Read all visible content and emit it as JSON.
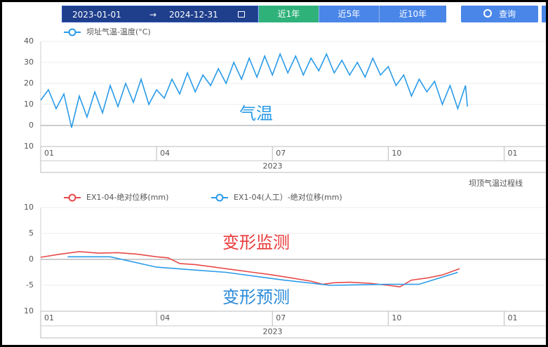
{
  "toolbar": {
    "start_date": "2023-01-01",
    "arrow": "→",
    "end_date": "2024-12-31",
    "ranges": [
      "近1年",
      "近5年",
      "近10年"
    ],
    "query": "查询"
  },
  "chart_data": [
    {
      "type": "line",
      "series": [
        {
          "name": "坝址气温-温度(°C)",
          "color": "#2a9be8",
          "x": [
            0,
            0.2,
            0.4,
            0.6,
            0.8,
            1,
            1.2,
            1.4,
            1.6,
            1.8,
            2,
            2.2,
            2.4,
            2.6,
            2.8,
            3,
            3.2,
            3.4,
            3.6,
            3.8,
            4,
            4.2,
            4.4,
            4.6,
            4.8,
            5,
            5.2,
            5.4,
            5.6,
            5.8,
            6,
            6.2,
            6.4,
            6.6,
            6.8,
            7,
            7.2,
            7.4,
            7.6,
            7.8,
            8,
            8.2,
            8.4,
            8.6,
            8.8,
            9,
            9.2,
            9.4,
            9.6,
            9.8,
            10,
            10.2,
            10.4,
            10.6,
            10.8,
            11,
            11.05
          ],
          "values": [
            12,
            17,
            8,
            15,
            -1,
            14,
            4,
            16,
            6,
            19,
            9,
            20,
            11,
            22,
            10,
            17,
            13,
            22,
            15,
            25,
            16,
            24,
            19,
            27,
            20,
            30,
            22,
            32,
            23,
            33,
            24,
            34,
            25,
            33,
            24,
            32,
            26,
            34,
            25,
            31,
            24,
            30,
            23,
            32,
            24,
            28,
            19,
            24,
            14,
            22,
            16,
            21,
            10,
            19,
            8,
            19,
            9
          ]
        }
      ],
      "annotations": [
        {
          "text": "气温",
          "color": "#2a9be8"
        }
      ],
      "caption": "坝顶气温过程线",
      "xlim": [
        0,
        13.1
      ],
      "xticks": [
        {
          "value": 0,
          "label": "01"
        },
        {
          "value": 3,
          "label": "04"
        },
        {
          "value": 6,
          "label": "07"
        },
        {
          "value": 9,
          "label": "10"
        },
        {
          "value": 12,
          "label": "01"
        }
      ],
      "x_group_label": "2023",
      "ylim": [
        -10,
        40
      ],
      "yticks": [
        40,
        30,
        20,
        10,
        0,
        {
          "value": -10,
          "label": "10"
        }
      ],
      "grid": true
    },
    {
      "type": "line",
      "series": [
        {
          "name": "EX1-04-绝对位移(mm)",
          "color": "#e84a4a",
          "x": [
            0,
            0.5,
            1,
            1.5,
            2,
            2.5,
            3,
            3.3,
            3.6,
            4,
            4.5,
            5,
            5.5,
            6,
            6.5,
            7,
            7.3,
            7.6,
            8,
            8.5,
            9,
            9.3,
            9.6,
            10,
            10.4,
            10.85
          ],
          "values": [
            0.4,
            1,
            1.5,
            1.2,
            1.3,
            1,
            0.5,
            0.3,
            -0.8,
            -1,
            -1.5,
            -2,
            -2.5,
            -3,
            -3.6,
            -4.2,
            -4.8,
            -4.5,
            -4.4,
            -4.6,
            -5,
            -5.3,
            -4,
            -3.6,
            -3,
            -1.8
          ]
        },
        {
          "name": "EX1-04(人工）-绝对位移(mm)",
          "color": "#2a9be8",
          "x": [
            0.7,
            1.8,
            3,
            4.8,
            6.3,
            7.5,
            9,
            9.8,
            10.8
          ],
          "values": [
            0.5,
            0.5,
            -1.5,
            -2.5,
            -4,
            -5,
            -4.8,
            -4.8,
            -2.5
          ]
        }
      ],
      "annotations": [
        {
          "text": "变形监测",
          "color": "#e83a3a"
        },
        {
          "text": "变形预测",
          "color": "#2a8ad8"
        }
      ],
      "xlim": [
        0,
        13.1
      ],
      "xticks": [
        {
          "value": 0,
          "label": "01"
        },
        {
          "value": 3,
          "label": "04"
        },
        {
          "value": 6,
          "label": "07"
        },
        {
          "value": 9,
          "label": "10"
        },
        {
          "value": 12,
          "label": "01"
        }
      ],
      "x_group_label": "2023",
      "ylim": [
        -10,
        10
      ],
      "yticks": [
        10,
        5,
        0,
        -5,
        {
          "value": -10,
          "label": "10"
        }
      ],
      "grid": true
    }
  ]
}
